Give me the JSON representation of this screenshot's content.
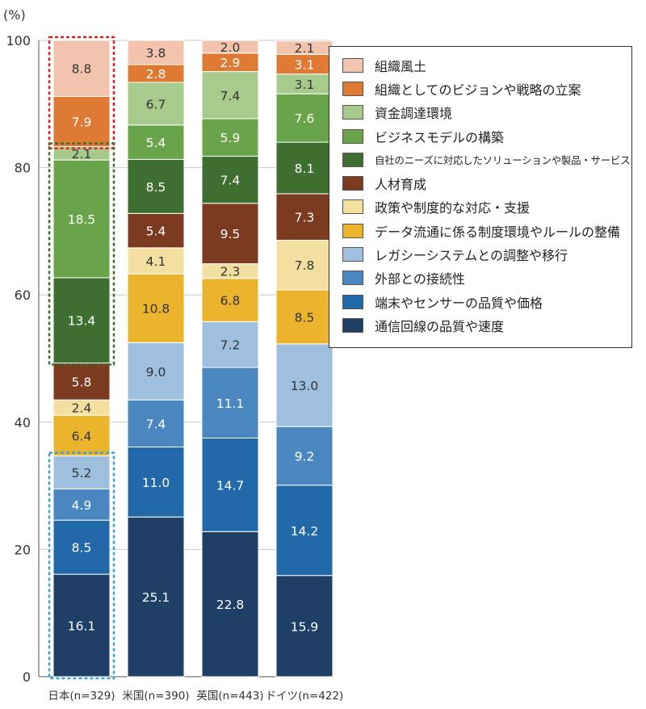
{
  "chart_data": {
    "type": "stacked-bar",
    "ylabel": "(%)",
    "ylim": [
      0,
      100
    ],
    "yticks": [
      "0",
      "20",
      "40",
      "60",
      "80",
      "100"
    ],
    "grid": true,
    "legend_position": "right",
    "categories": [
      "日本(n=329)",
      "米国(n=390)",
      "英国(n=443)",
      "ドイツ(n=422)"
    ],
    "series": [
      {
        "name": "通信回線の品質や速度",
        "color": "#1f3f66",
        "values": [
          16.1,
          25.1,
          22.8,
          15.9
        ]
      },
      {
        "name": "端末やセンサーの品質や価格",
        "color": "#2169a8",
        "values": [
          8.5,
          11.0,
          14.7,
          14.2
        ]
      },
      {
        "name": "外部との接続性",
        "color": "#4a86bf",
        "values": [
          4.9,
          7.4,
          11.1,
          9.2
        ]
      },
      {
        "name": "レガシーシステムとの調整や移行",
        "color": "#9fbfde",
        "values": [
          5.2,
          9.0,
          7.2,
          13.0
        ]
      },
      {
        "name": "データ流通に係る制度環境やルールの整備",
        "color": "#ebb42c",
        "values": [
          6.4,
          10.8,
          6.8,
          8.5
        ]
      },
      {
        "name": "政策や制度的な対応・支援",
        "color": "#f3e0a0",
        "values": [
          2.4,
          4.1,
          2.3,
          7.8
        ]
      },
      {
        "name": "人材育成",
        "color": "#7c3a21",
        "values": [
          5.8,
          5.4,
          9.5,
          7.3
        ]
      },
      {
        "name": "自社のニーズに対応したソリューションや製品・サービス",
        "color": "#3f6e31",
        "values": [
          13.4,
          8.5,
          7.4,
          8.1
        ]
      },
      {
        "name": "ビジネスモデルの構築",
        "color": "#6aa44a",
        "values": [
          18.5,
          5.4,
          5.9,
          7.6
        ]
      },
      {
        "name": "資金調達環境",
        "color": "#a7cb8d",
        "values": [
          2.1,
          6.7,
          7.4,
          3.1
        ]
      },
      {
        "name": "組織としてのビジョンや戦略の立案",
        "color": "#df7a35",
        "values": [
          7.9,
          2.8,
          2.9,
          3.1
        ]
      },
      {
        "name": "組織風土",
        "color": "#f2c4ad",
        "values": [
          8.8,
          3.8,
          2.0,
          2.1
        ]
      }
    ],
    "value_labels": {
      "通信回線の品質や速度": [
        "16.1",
        "25.1",
        "22.8",
        "15.9"
      ],
      "端末やセンサーの品質や価格": [
        "8.5",
        "11.0",
        "14.7",
        "14.2"
      ],
      "外部との接続性": [
        "4.9",
        "7.4",
        "11.1",
        "9.2"
      ],
      "レガシーシステムとの調整や移行": [
        "5.2",
        "9.0",
        "7.2",
        "13.0"
      ],
      "データ流通に係る制度環境やルールの整備": [
        "6.4",
        "10.8",
        "6.8",
        "8.5"
      ],
      "政策や制度的な対応・支援": [
        "2.4",
        "4.1",
        "2.3",
        "7.8"
      ],
      "人材育成": [
        "5.8",
        "5.4",
        "9.5",
        "7.3"
      ],
      "自社のニーズに対応したソリューションや製品・サービス": [
        "13.4",
        "8.5",
        "7.4",
        "8.1"
      ],
      "ビジネスモデルの構築": [
        "18.5",
        "5.4",
        "5.9",
        "7.6"
      ],
      "資金調達環境": [
        "2.1",
        "6.7",
        "7.4",
        "3.1"
      ],
      "組織としてのビジョンや戦略の立案": [
        "7.9",
        "2.8",
        "2.9",
        "3.1"
      ],
      "組織風土": [
        "8.8",
        "3.8",
        "2.0",
        "2.1"
      ]
    },
    "highlight_boxes": [
      {
        "category": "日本(n=329)",
        "from_series": 10,
        "to_series": 11,
        "color": "#e02020"
      },
      {
        "category": "日本(n=329)",
        "from_series": 7,
        "to_series": 9,
        "color": "#3f6e31"
      },
      {
        "category": "日本(n=329)",
        "from_series": 0,
        "to_series": 3,
        "color": "#3aa0dc"
      }
    ]
  },
  "legend": {
    "items": [
      {
        "label": "組織風土",
        "color": "#f2c4ad"
      },
      {
        "label": "組織としてのビジョンや戦略の立案",
        "color": "#df7a35"
      },
      {
        "label": "資金調達環境",
        "color": "#a7cb8d"
      },
      {
        "label": "ビジネスモデルの構築",
        "color": "#6aa44a"
      },
      {
        "label": "自社のニーズに対応したソリューションや製品・サービス",
        "color": "#3f6e31"
      },
      {
        "label": "人材育成",
        "color": "#7c3a21"
      },
      {
        "label": "政策や制度的な対応・支援",
        "color": "#f3e0a0"
      },
      {
        "label": "データ流通に係る制度環境やルールの整備",
        "color": "#ebb42c"
      },
      {
        "label": "レガシーシステムとの調整や移行",
        "color": "#9fbfde"
      },
      {
        "label": "外部との接続性",
        "color": "#4a86bf"
      },
      {
        "label": "端末やセンサーの品質や価格",
        "color": "#2169a8"
      },
      {
        "label": "通信回線の品質や速度",
        "color": "#1f3f66"
      }
    ]
  }
}
